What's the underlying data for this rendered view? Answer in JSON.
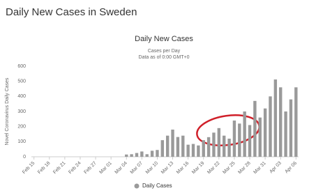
{
  "page_title": "Daily New Cases in Sweden",
  "chart_data": {
    "type": "bar",
    "title": "Daily New Cases",
    "subtitle": "Cases per Day",
    "note": "Data as of 0:00 GMT+0",
    "y_label": "Novel Coronavirus Daily Cases",
    "categories": [
      "Feb 15",
      null,
      null,
      "Feb 18",
      null,
      null,
      "Feb 21",
      null,
      null,
      "Feb 24",
      null,
      null,
      "Feb 27",
      null,
      null,
      "Mar 01",
      null,
      null,
      "Mar 04",
      null,
      null,
      "Mar 07",
      null,
      null,
      "Mar 10",
      null,
      null,
      "Mar 13",
      null,
      null,
      "Mar 16",
      null,
      null,
      "Mar 19",
      null,
      null,
      "Mar 22",
      null,
      null,
      "Mar 25",
      null,
      null,
      "Mar 28",
      null,
      null,
      "Mar 31",
      null,
      null,
      "Apr 03",
      null,
      null,
      "Apr 06"
    ],
    "series": [
      {
        "name": "Daily Cases",
        "color": "#9a9a9a",
        "values": [
          0,
          0,
          0,
          0,
          0,
          0,
          0,
          0,
          0,
          0,
          0,
          0,
          0,
          0,
          0,
          0,
          0,
          0,
          15,
          17,
          25,
          35,
          17,
          40,
          45,
          110,
          140,
          180,
          131,
          140,
          80,
          85,
          75,
          110,
          130,
          160,
          190,
          140,
          120,
          240,
          220,
          300,
          210,
          370,
          260,
          320,
          400,
          512,
          460,
          300,
          380,
          460
        ]
      }
    ],
    "ylim": [
      0,
      600
    ],
    "yticks": [
      0,
      100,
      200,
      300,
      400,
      500,
      600
    ],
    "grid": false
  }
}
